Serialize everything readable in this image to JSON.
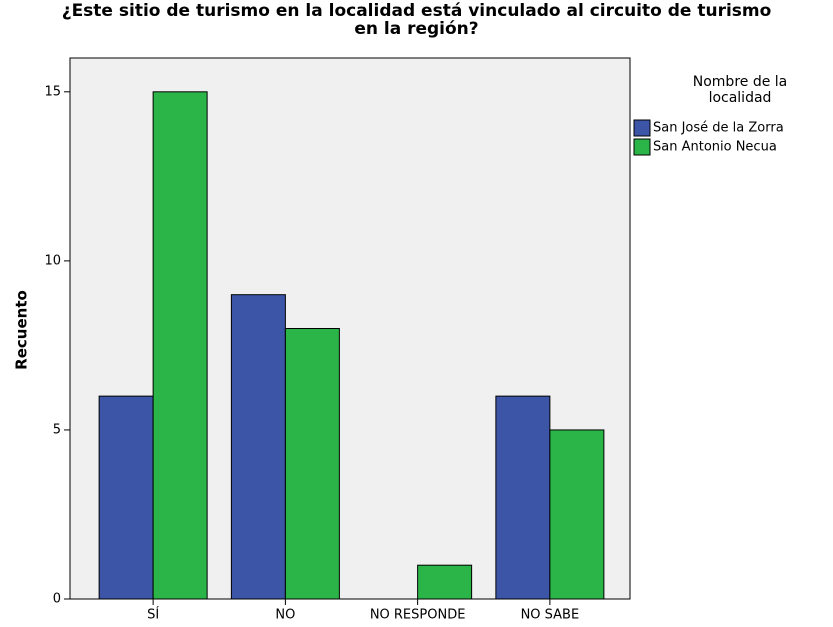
{
  "chart_data": {
    "type": "bar",
    "title": "¿Este sitio de turismo en la localidad está vinculado al circuito de turismo en la región?",
    "y_label": "Recuento",
    "legend_title": "Nombre de la localidad",
    "legend_position": "right",
    "categories": [
      "SÍ",
      "NO",
      "NO RESPONDE",
      "NO SABE"
    ],
    "series": [
      {
        "name": "San José de la Zorra",
        "color": "#3c55a7",
        "values": [
          6,
          9,
          0,
          6
        ]
      },
      {
        "name": "San Antonio Necua",
        "color": "#2bb548",
        "values": [
          15,
          8,
          1,
          5
        ]
      }
    ],
    "ylim": [
      0,
      16
    ],
    "yticks": [
      0,
      5,
      10,
      15
    ],
    "grid": false
  }
}
